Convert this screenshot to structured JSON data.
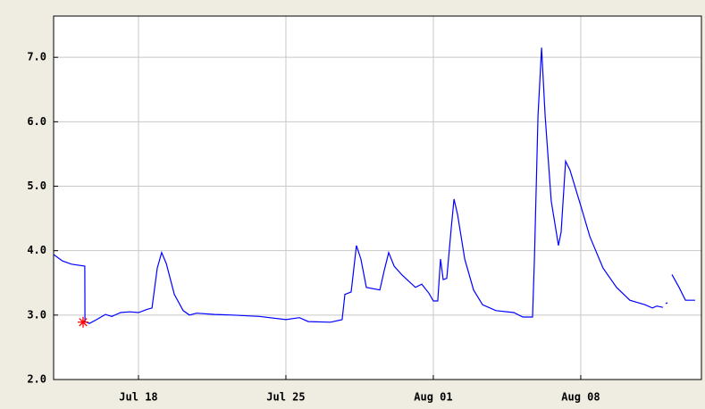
{
  "chart_data": {
    "type": "line",
    "x": [
      0,
      0.42,
      0.85,
      1.48,
      1.49,
      1.7,
      2.04,
      2.46,
      2.76,
      3.18,
      3.61,
      4.03,
      4.45,
      4.67,
      4.92,
      5.13,
      5.35,
      5.73,
      6.15,
      6.45,
      6.79,
      7.64,
      8.49,
      9.76,
      11.03,
      11.67,
      12.09,
      13.15,
      13.7,
      13.83,
      14.13,
      14.38,
      14.59,
      14.85,
      15.49,
      15.7,
      15.91,
      16.17,
      16.55,
      17.18,
      17.48,
      17.82,
      18.03,
      18.24,
      18.37,
      18.5,
      18.67,
      18.88,
      19.01,
      19.18,
      19.52,
      19.94,
      20.37,
      21.0,
      21.85,
      22.28,
      22.74,
      22.83,
      23.0,
      23.17,
      23.34,
      23.63,
      23.97,
      24.1,
      24.31,
      24.52,
      25.03,
      25.46,
      26.09,
      26.73,
      27.36,
      28.09,
      28.43,
      28.64,
      28.93,
      29.0,
      29.06,
      29.15,
      29.25,
      29.36,
      29.7,
      30.0,
      30.46
    ],
    "series": [
      {
        "color": "#0000ff",
        "values": [
          3.94,
          3.84,
          3.79,
          3.76,
          2.9,
          2.87,
          2.93,
          3.01,
          2.98,
          3.04,
          3.05,
          3.04,
          3.09,
          3.11,
          3.73,
          3.97,
          3.8,
          3.32,
          3.07,
          3.0,
          3.03,
          3.01,
          3.0,
          2.98,
          2.93,
          2.96,
          2.9,
          2.89,
          2.93,
          3.32,
          3.36,
          4.08,
          3.87,
          3.43,
          3.39,
          3.69,
          3.97,
          3.76,
          3.62,
          3.43,
          3.48,
          3.34,
          3.22,
          3.22,
          3.87,
          3.55,
          3.57,
          4.35,
          4.8,
          4.56,
          3.87,
          3.39,
          3.16,
          3.07,
          3.04,
          2.97,
          2.97,
          3.87,
          6.09,
          7.15,
          6.09,
          4.77,
          4.08,
          4.29,
          5.39,
          5.25,
          4.7,
          4.22,
          3.73,
          3.43,
          3.23,
          3.16,
          3.11,
          3.14,
          3.12,
          null,
          3.18,
          3.19,
          null,
          3.63,
          3.43,
          3.23,
          3.23
        ]
      }
    ],
    "marker": {
      "x": 1.4,
      "y": 2.89,
      "color": "#ff0000"
    },
    "xlim": [
      0,
      30.76
    ],
    "xticks": [
      {
        "value": 4.03,
        "label": "Jul 18"
      },
      {
        "value": 11.03,
        "label": "Jul 25"
      },
      {
        "value": 18.03,
        "label": "Aug 01"
      },
      {
        "value": 25.03,
        "label": "Aug 08"
      }
    ],
    "ylim": [
      2,
      7.64
    ],
    "yticks": [
      {
        "value": 2,
        "label": "2.0"
      },
      {
        "value": 3,
        "label": "3.0"
      },
      {
        "value": 4,
        "label": "4.0"
      },
      {
        "value": 5,
        "label": "5.0"
      },
      {
        "value": 6,
        "label": "6.0"
      },
      {
        "value": 7,
        "label": "7.0"
      }
    ],
    "grid": true
  }
}
